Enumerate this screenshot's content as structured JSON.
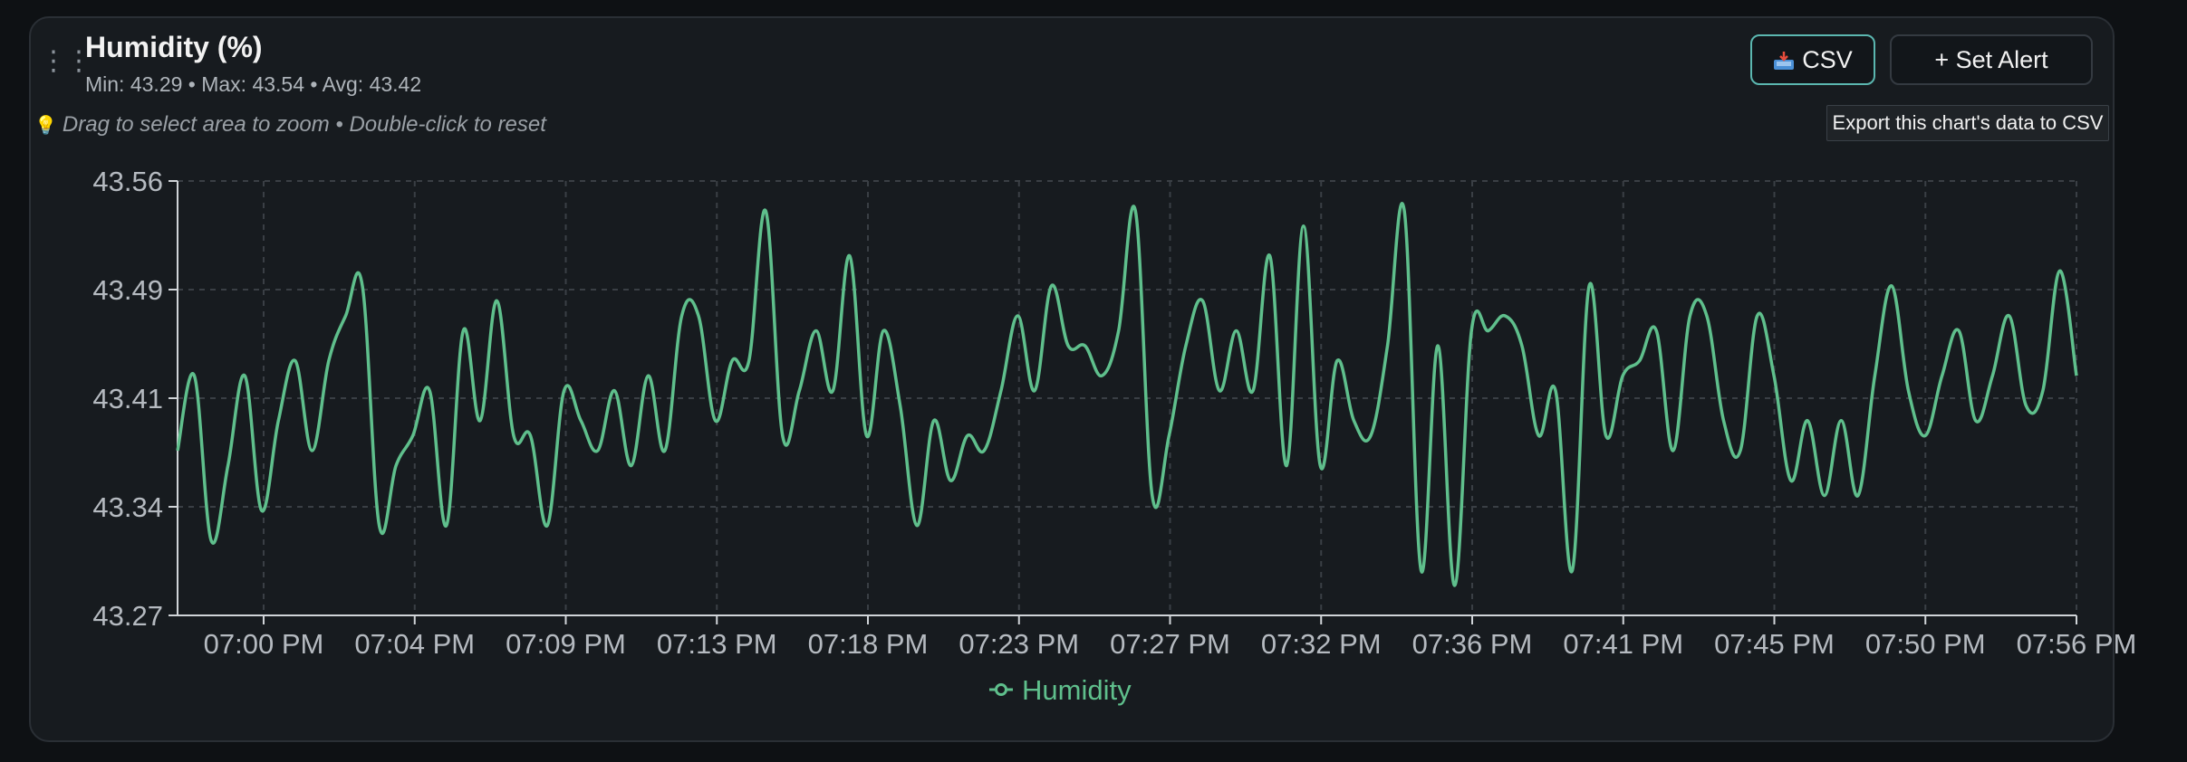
{
  "header": {
    "title": "Humidity (%)",
    "stats": "Min: 43.29 • Max: 43.54 • Avg: 43.42",
    "hint": "Drag to select area to zoom • Double-click to reset"
  },
  "toolbar": {
    "csv_label": "CSV",
    "alert_label": "+ Set Alert",
    "csv_tooltip": "Export this chart's data to CSV"
  },
  "icons": {
    "drag": "drag-handle-icon",
    "hint": "lightbulb-icon",
    "csv": "inbox-tray-icon"
  },
  "colors": {
    "series": "#5fbf8c",
    "csv_border": "#5bb7b0",
    "background": "#171b1f"
  },
  "chart_data": {
    "type": "line",
    "ylim": [
      43.27,
      43.56
    ],
    "yticks": [
      "43.56",
      "43.49",
      "43.41",
      "43.34",
      "43.27"
    ],
    "xticks": [
      "07:00 PM",
      "07:04 PM",
      "07:09 PM",
      "07:13 PM",
      "07:18 PM",
      "07:23 PM",
      "07:27 PM",
      "07:32 PM",
      "07:36 PM",
      "07:41 PM",
      "07:45 PM",
      "07:50 PM",
      "07:56 PM"
    ],
    "grid": true,
    "legend": "bottom-center",
    "series": [
      {
        "name": "Humidity",
        "values": [
          43.38,
          43.43,
          43.32,
          43.37,
          43.43,
          43.34,
          43.4,
          43.44,
          43.38,
          43.44,
          43.47,
          43.49,
          43.33,
          43.37,
          43.39,
          43.42,
          43.33,
          43.46,
          43.4,
          43.48,
          43.39,
          43.39,
          43.33,
          43.42,
          43.4,
          43.38,
          43.42,
          43.37,
          43.43,
          43.38,
          43.47,
          43.47,
          43.4,
          43.44,
          43.44,
          43.54,
          43.39,
          43.42,
          43.46,
          43.42,
          43.51,
          43.39,
          43.46,
          43.41,
          43.33,
          43.4,
          43.36,
          43.39,
          43.38,
          43.42,
          43.47,
          43.42,
          43.49,
          43.45,
          43.45,
          43.43,
          43.46,
          43.54,
          43.35,
          43.39,
          43.45,
          43.48,
          43.42,
          43.46,
          43.42,
          43.51,
          43.37,
          43.53,
          43.37,
          43.44,
          43.4,
          43.39,
          43.45,
          43.54,
          43.3,
          43.45,
          43.29,
          43.46,
          43.46,
          43.47,
          43.45,
          43.39,
          43.42,
          43.3,
          43.49,
          43.39,
          43.43,
          43.44,
          43.46,
          43.38,
          43.47,
          43.47,
          43.4,
          43.38,
          43.47,
          43.43,
          43.36,
          43.4,
          43.35,
          43.4,
          43.35,
          43.43,
          43.49,
          43.42,
          43.39,
          43.43,
          43.46,
          43.4,
          43.43,
          43.47,
          43.41,
          43.42,
          43.5,
          43.43
        ]
      }
    ]
  }
}
